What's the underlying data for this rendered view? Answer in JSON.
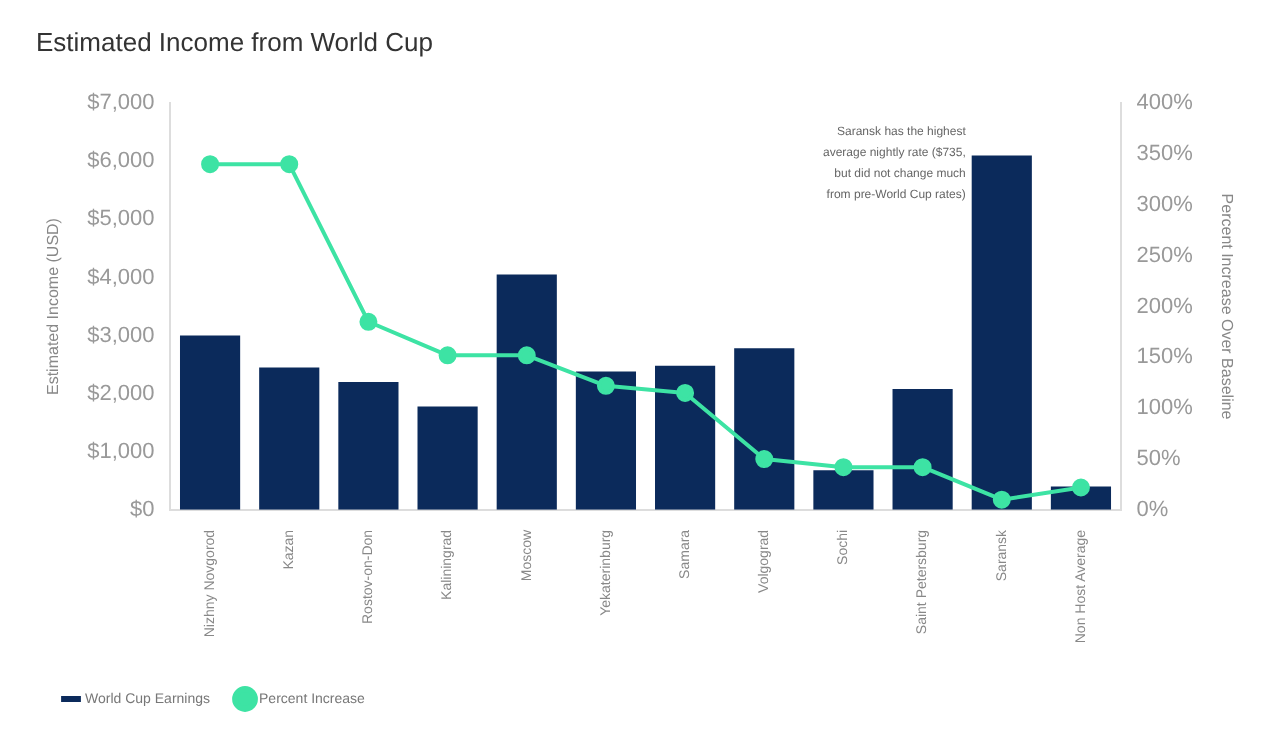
{
  "chart_data": {
    "type": "bar",
    "title": "Estimated Income from World Cup",
    "ylabel": "Estimated Income (USD)",
    "y2label": "Percent Increase Over Baseline",
    "categories": [
      "Nizhny Novgorod",
      "Kazan",
      "Rostov-on-Don",
      "Kaliningrad",
      "Moscow",
      "Yekaterinburg",
      "Samara",
      "Volgograd",
      "Sochi",
      "Saint Petersburg",
      "Saransk",
      "Non Host Average"
    ],
    "series": [
      {
        "name": "World Cup Earnings",
        "color": "#0b2a5b",
        "values": [
          3000,
          2450,
          2200,
          1780,
          4050,
          2380,
          2480,
          2780,
          680,
          2080,
          6100,
          400
        ]
      },
      {
        "name": "Percent Increase",
        "type": "line",
        "axis": "y2",
        "color": "#3de3a4",
        "values": [
          340,
          340,
          185,
          152,
          152,
          122,
          115,
          50,
          42,
          42,
          10,
          22
        ]
      }
    ],
    "ylim": [
      0,
      7000
    ],
    "yticks": [
      {
        "value": 0,
        "label": "$0"
      },
      {
        "value": 1000,
        "label": "$1,000"
      },
      {
        "value": 2000,
        "label": "$2,000"
      },
      {
        "value": 3000,
        "label": "$3,000"
      },
      {
        "value": 4000,
        "label": "$4,000"
      },
      {
        "value": 5000,
        "label": "$5,000"
      },
      {
        "value": 6000,
        "label": "$6,000"
      },
      {
        "value": 7000,
        "label": "$7,000"
      }
    ],
    "y2lim": [
      0,
      400
    ],
    "y2ticks": [
      {
        "value": 0,
        "label": "0%"
      },
      {
        "value": 50,
        "label": "50%"
      },
      {
        "value": 100,
        "label": "100%"
      },
      {
        "value": 150,
        "label": "150%"
      },
      {
        "value": 200,
        "label": "200%"
      },
      {
        "value": 250,
        "label": "250%"
      },
      {
        "value": 300,
        "label": "300%"
      },
      {
        "value": 350,
        "label": "350%"
      },
      {
        "value": 400,
        "label": "400%"
      }
    ],
    "annotations": [
      "Saransk has the highest average nightly rate ($735, but did not change much from pre-World Cup rates)"
    ],
    "grid": false,
    "legend": "bottom left",
    "marker": "circle",
    "line_style": "solid"
  }
}
